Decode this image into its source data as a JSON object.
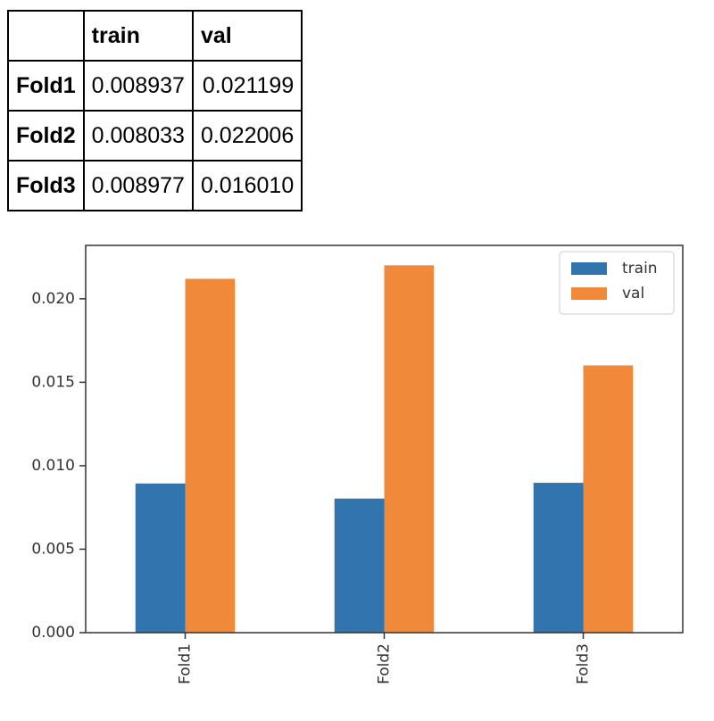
{
  "table": {
    "index_header": "",
    "columns": [
      "train",
      "val"
    ],
    "rows": [
      {
        "label": "Fold1",
        "train": "0.008937",
        "val": "0.021199"
      },
      {
        "label": "Fold2",
        "train": "0.008033",
        "val": "0.022006"
      },
      {
        "label": "Fold3",
        "train": "0.008977",
        "val": "0.016010"
      }
    ]
  },
  "chart_data": {
    "type": "bar",
    "categories": [
      "Fold1",
      "Fold2",
      "Fold3"
    ],
    "series": [
      {
        "name": "train",
        "values": [
          0.008937,
          0.008033,
          0.008977
        ],
        "color": "#3274ad"
      },
      {
        "name": "val",
        "values": [
          0.021199,
          0.022006,
          0.01601
        ],
        "color": "#f0893a"
      }
    ],
    "ylim": [
      0,
      0.0232
    ],
    "yticks": [
      0.0,
      0.005,
      0.01,
      0.015,
      0.02
    ],
    "ytick_labels": [
      "0.000",
      "0.005",
      "0.010",
      "0.015",
      "0.020"
    ],
    "title": "",
    "xlabel": "",
    "ylabel": "",
    "grid": false,
    "legend": "top-right",
    "xtick_rotation": "vertical"
  }
}
